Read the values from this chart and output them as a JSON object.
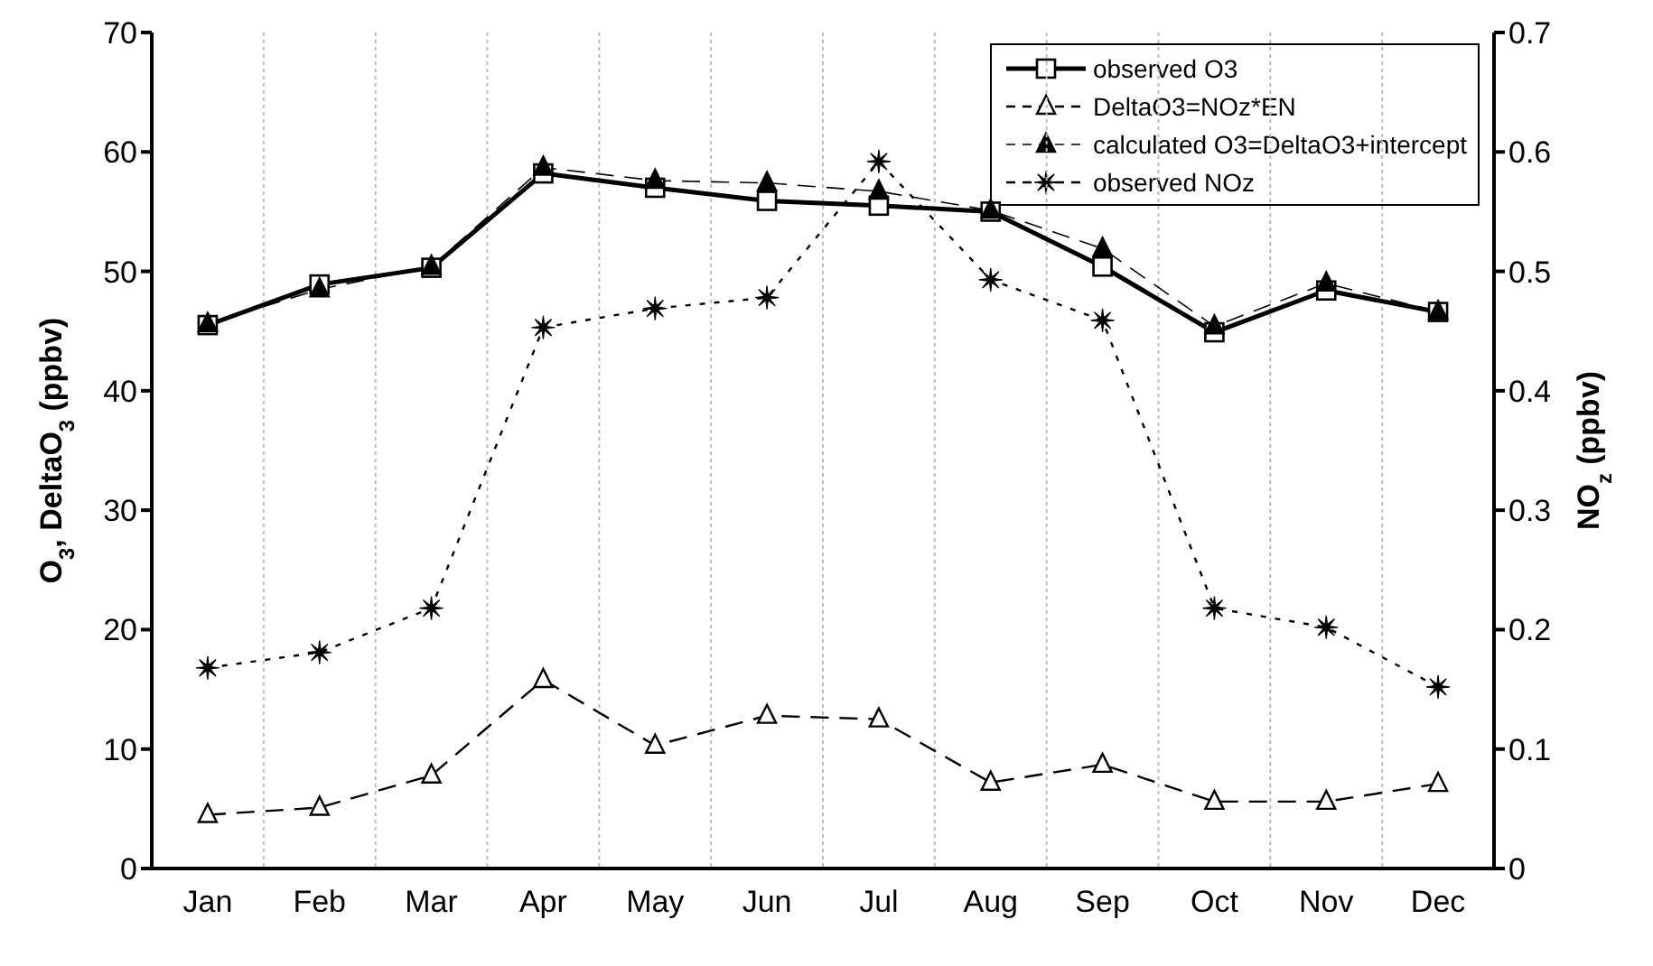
{
  "chart_data": {
    "type": "line",
    "ylabel": "O$_{3}$, DeltaO$_{3}$ (ppbv)",
    "y2label": "NO$_{z}$ (ppbv)",
    "categories": [
      "Jan",
      "Feb",
      "Mar",
      "Apr",
      "May",
      "Jun",
      "Jul",
      "Aug",
      "Sep",
      "Oct",
      "Nov",
      "Dec"
    ],
    "ylim": [
      0,
      70
    ],
    "yticks": [
      0,
      10,
      20,
      30,
      40,
      50,
      60,
      70
    ],
    "y2lim": [
      0,
      0.7
    ],
    "y2ticks": [
      0,
      0.1,
      0.2,
      0.3,
      0.4,
      0.5,
      0.6,
      0.7
    ],
    "grid": true,
    "legend": "top right",
    "series": [
      {
        "name": "observed O3",
        "color": "#000000",
        "marker": "square",
        "line_style": "solid",
        "values": [
          45.5,
          48.9,
          50.3,
          58.2,
          57.0,
          55.9,
          55.5,
          55.0,
          50.4,
          44.9,
          48.4,
          46.6
        ]
      },
      {
        "name": "DeltaO3=NOz*EN",
        "color": "#000000",
        "marker": "triangle",
        "line_style": "dashed",
        "values": [
          4.5,
          5.1,
          7.8,
          15.8,
          10.3,
          12.8,
          12.5,
          7.2,
          8.7,
          5.6,
          5.6,
          7.1
        ]
      },
      {
        "name": "calculated O3=DeltaO3+intercept",
        "color": "#000000",
        "marker": "triangle",
        "line_style": "dashed",
        "values": [
          45.6,
          48.5,
          50.4,
          58.7,
          57.6,
          57.4,
          56.7,
          55.1,
          51.9,
          45.4,
          49.0,
          46.6
        ]
      },
      {
        "name": "observed NOz",
        "color": "#000000",
        "marker": "star",
        "line_style": "dotted",
        "axis": "y2",
        "values": [
          0.168,
          0.181,
          0.218,
          0.453,
          0.469,
          0.478,
          0.592,
          0.493,
          0.459,
          0.218,
          0.202,
          0.152
        ]
      }
    ]
  }
}
